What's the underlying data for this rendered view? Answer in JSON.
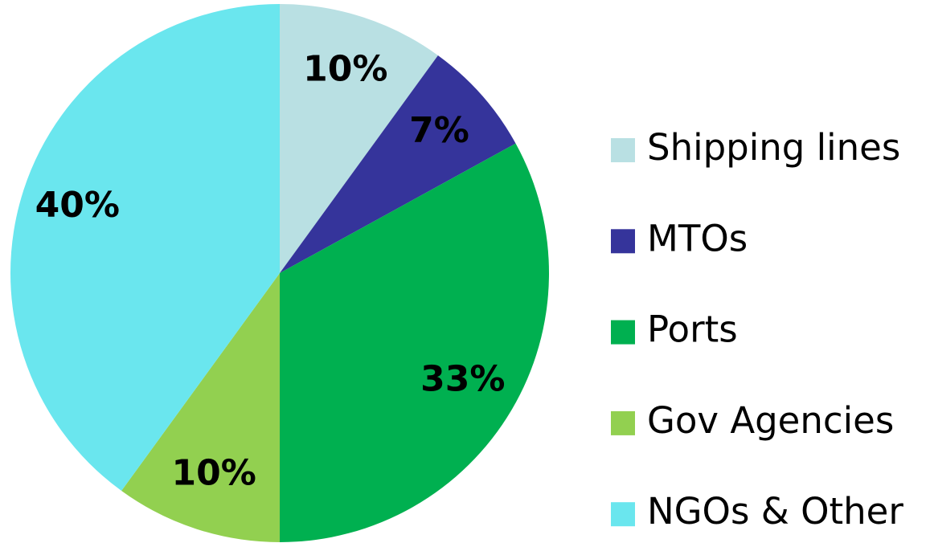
{
  "chart_data": {
    "type": "pie",
    "categories": [
      "Shipping lines",
      "MTOs",
      "Ports",
      "Gov Agencies",
      "NGOs & Other"
    ],
    "values": [
      10,
      7,
      33,
      10,
      40
    ],
    "value_labels": [
      "10%",
      "7%",
      "33%",
      "10%",
      "40%"
    ],
    "colors": [
      "#b9e0e3",
      "#35349b",
      "#00b050",
      "#92d050",
      "#6ae6ee"
    ],
    "legend": "right"
  }
}
